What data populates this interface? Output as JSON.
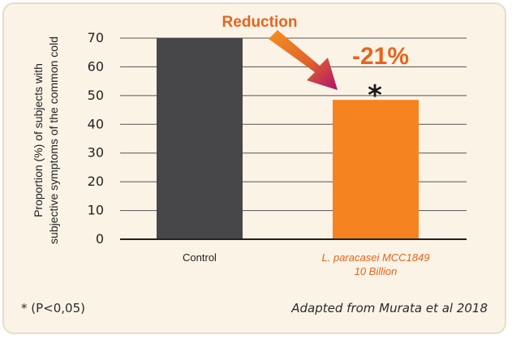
{
  "chart_data": {
    "type": "bar",
    "categories": [
      "Control",
      "L. paracasei MCC1849 10 Billion"
    ],
    "category_lines": [
      [
        "Control"
      ],
      [
        "L. paracasei MCC1849",
        "10 Billion"
      ]
    ],
    "values": [
      70,
      48.5
    ],
    "bar_colors": [
      "#474749",
      "#f5831f"
    ],
    "label_colors": [
      "#222222",
      "#e9631c"
    ],
    "ylabel_lines": [
      "Proportion (%) of subjects with",
      "subjective symptoms of the common cold"
    ],
    "yticks": [
      0,
      10,
      20,
      30,
      40,
      50,
      60,
      70
    ],
    "ylim": [
      0,
      70
    ],
    "grid": true,
    "annotations": {
      "arrow_label": "Reduction",
      "change": "-21%",
      "significance": "*",
      "accent_color": "#e9631c"
    }
  },
  "footnote": "* (P<0,05)",
  "source": "Adapted from Murata et al 2018"
}
